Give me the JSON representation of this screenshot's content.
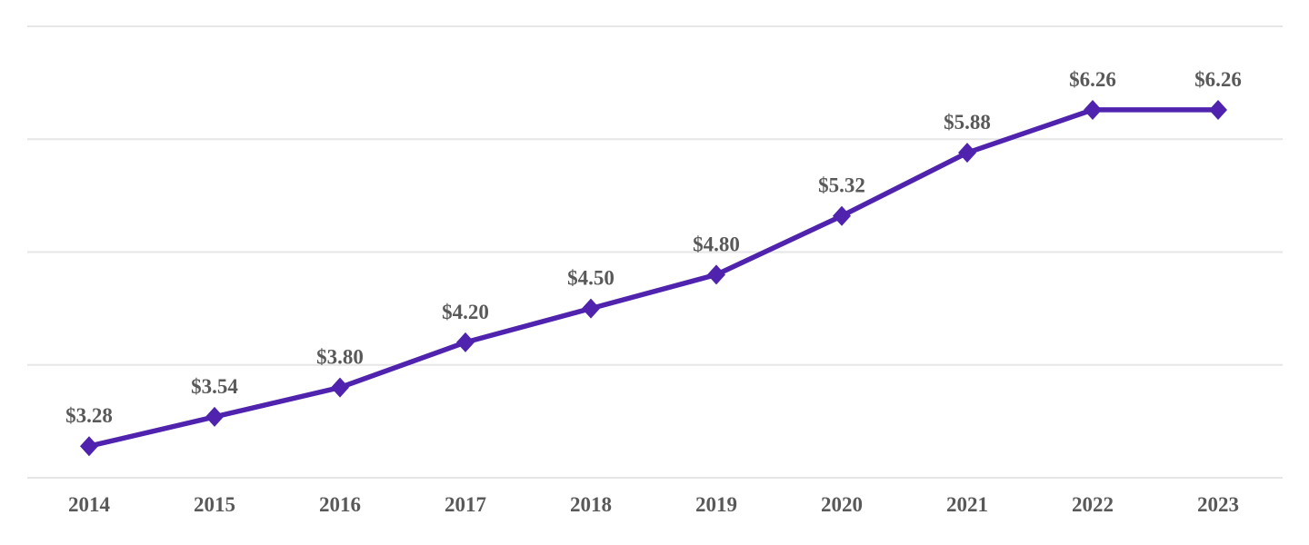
{
  "chart_data": {
    "type": "line",
    "title": "",
    "categories": [
      "2014",
      "2015",
      "2016",
      "2017",
      "2018",
      "2019",
      "2020",
      "2021",
      "2022",
      "2023"
    ],
    "series": [
      {
        "name": "",
        "values": [
          3.28,
          3.54,
          3.8,
          4.2,
          4.5,
          4.8,
          5.32,
          5.88,
          6.26,
          6.26
        ],
        "point_labels": [
          "$3.28",
          "$3.54",
          "$3.80",
          "$4.20",
          "$4.50",
          "$4.80",
          "$5.32",
          "$5.88",
          "$6.26",
          "$6.26"
        ]
      }
    ],
    "xlabel": "",
    "ylabel": "",
    "ylim": [
      3,
      7
    ],
    "gridline_step": 1,
    "grid": true,
    "legend": "none",
    "marker": "diamond",
    "colors": {
      "line": "#4F23AE",
      "marker": "#4F23AE",
      "label_text": "#595959",
      "axis_text": "#595959",
      "gridline": "#E6E6E6",
      "background": "#FFFFFF"
    }
  }
}
